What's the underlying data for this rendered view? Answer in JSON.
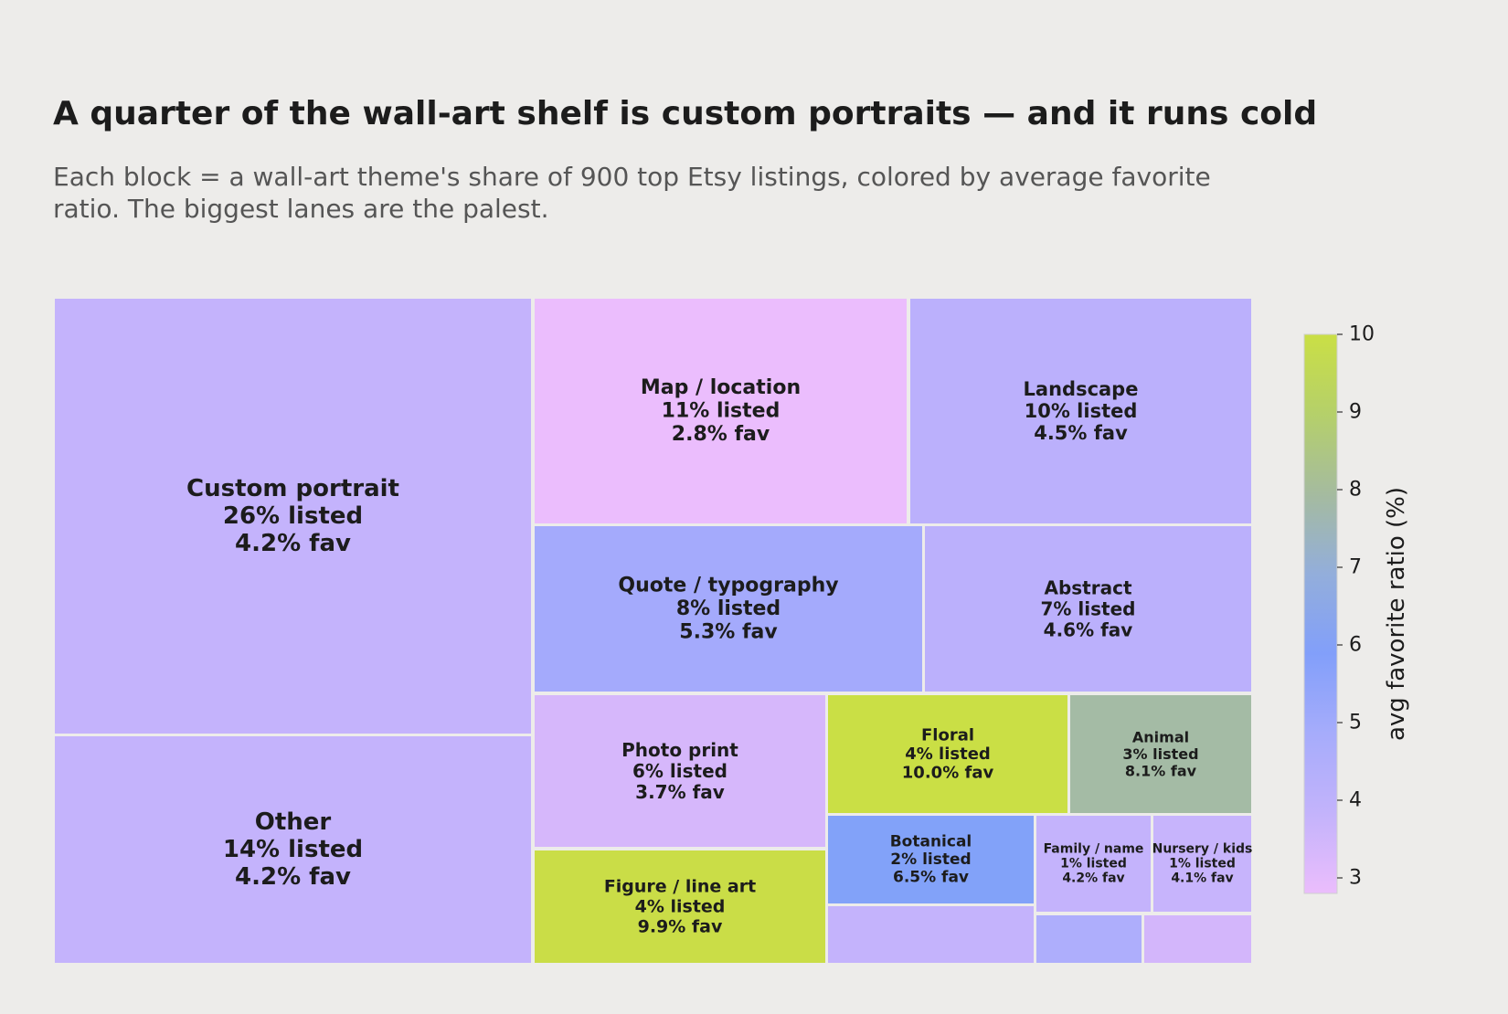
{
  "title": "A quarter of the wall-art shelf is custom portraits — and it runs cold",
  "subtitle": "Each block = a wall-art theme's share of 900 top Etsy listings, colored by average favorite ratio. The biggest lanes are the palest.",
  "chart_data": {
    "type": "treemap",
    "size_metric": "% listed",
    "color_metric": "avg favorite ratio (%)",
    "colorbar": {
      "label": "avg favorite ratio (%)",
      "range": [
        2.8,
        10.0
      ],
      "ticks": [
        3,
        4,
        5,
        6,
        7,
        8,
        9,
        10
      ],
      "colors": [
        "#ebbdfc",
        "#c3b3fb",
        "#a6acfb",
        "#829ffa",
        "#93aedb",
        "#a5bb9f",
        "#b5d06a",
        "#cadf45"
      ]
    },
    "tiles": [
      {
        "name": "Custom portrait",
        "listed": "26% listed",
        "fav": "4.2% fav",
        "fav_value": 4.2,
        "color": "#c4b3fc"
      },
      {
        "name": "Other",
        "listed": "14% listed",
        "fav": "4.2% fav",
        "fav_value": 4.2,
        "color": "#c4b3fc"
      },
      {
        "name": "Map / location",
        "listed": "11% listed",
        "fav": "2.8% fav",
        "fav_value": 2.8,
        "color": "#ebbdfd"
      },
      {
        "name": "Landscape",
        "listed": "10% listed",
        "fav": "4.5% fav",
        "fav_value": 4.5,
        "color": "#bbb0fc"
      },
      {
        "name": "Quote / typography",
        "listed": "8% listed",
        "fav": "5.3% fav",
        "fav_value": 5.3,
        "color": "#a4aafc"
      },
      {
        "name": "Abstract",
        "listed": "7% listed",
        "fav": "4.6% fav",
        "fav_value": 4.6,
        "color": "#bbb0fc"
      },
      {
        "name": "Photo print",
        "listed": "6% listed",
        "fav": "3.7% fav",
        "fav_value": 3.7,
        "color": "#d6b7fb"
      },
      {
        "name": "Figure / line art",
        "listed": "4% listed",
        "fav": "9.9% fav",
        "fav_value": 9.9,
        "color": "#cadd47"
      },
      {
        "name": "Floral",
        "listed": "4% listed",
        "fav": "10.0% fav",
        "fav_value": 10.0,
        "color": "#cadf45"
      },
      {
        "name": "Animal",
        "listed": "3% listed",
        "fav": "8.1% fav",
        "fav_value": 8.1,
        "color": "#a4bba5"
      },
      {
        "name": "Botanical",
        "listed": "2% listed",
        "fav": "6.5% fav",
        "fav_value": 6.5,
        "color": "#82a2f9"
      },
      {
        "name": "Family / name",
        "listed": "1% listed",
        "fav": "4.2% fav",
        "fav_value": 4.2,
        "color": "#c4b3fc"
      },
      {
        "name": "Nursery / kids",
        "listed": "1% listed",
        "fav": "4.1% fav",
        "fav_value": 4.1,
        "color": "#c7b4fc"
      },
      {
        "name": "",
        "listed": "",
        "fav": "",
        "fav_value": null,
        "color": "#c4b3fc"
      },
      {
        "name": "",
        "listed": "",
        "fav": "",
        "fav_value": null,
        "color": "#aeaefc"
      },
      {
        "name": "",
        "listed": "",
        "fav": "",
        "fav_value": null,
        "color": "#d3b6fb"
      }
    ]
  }
}
